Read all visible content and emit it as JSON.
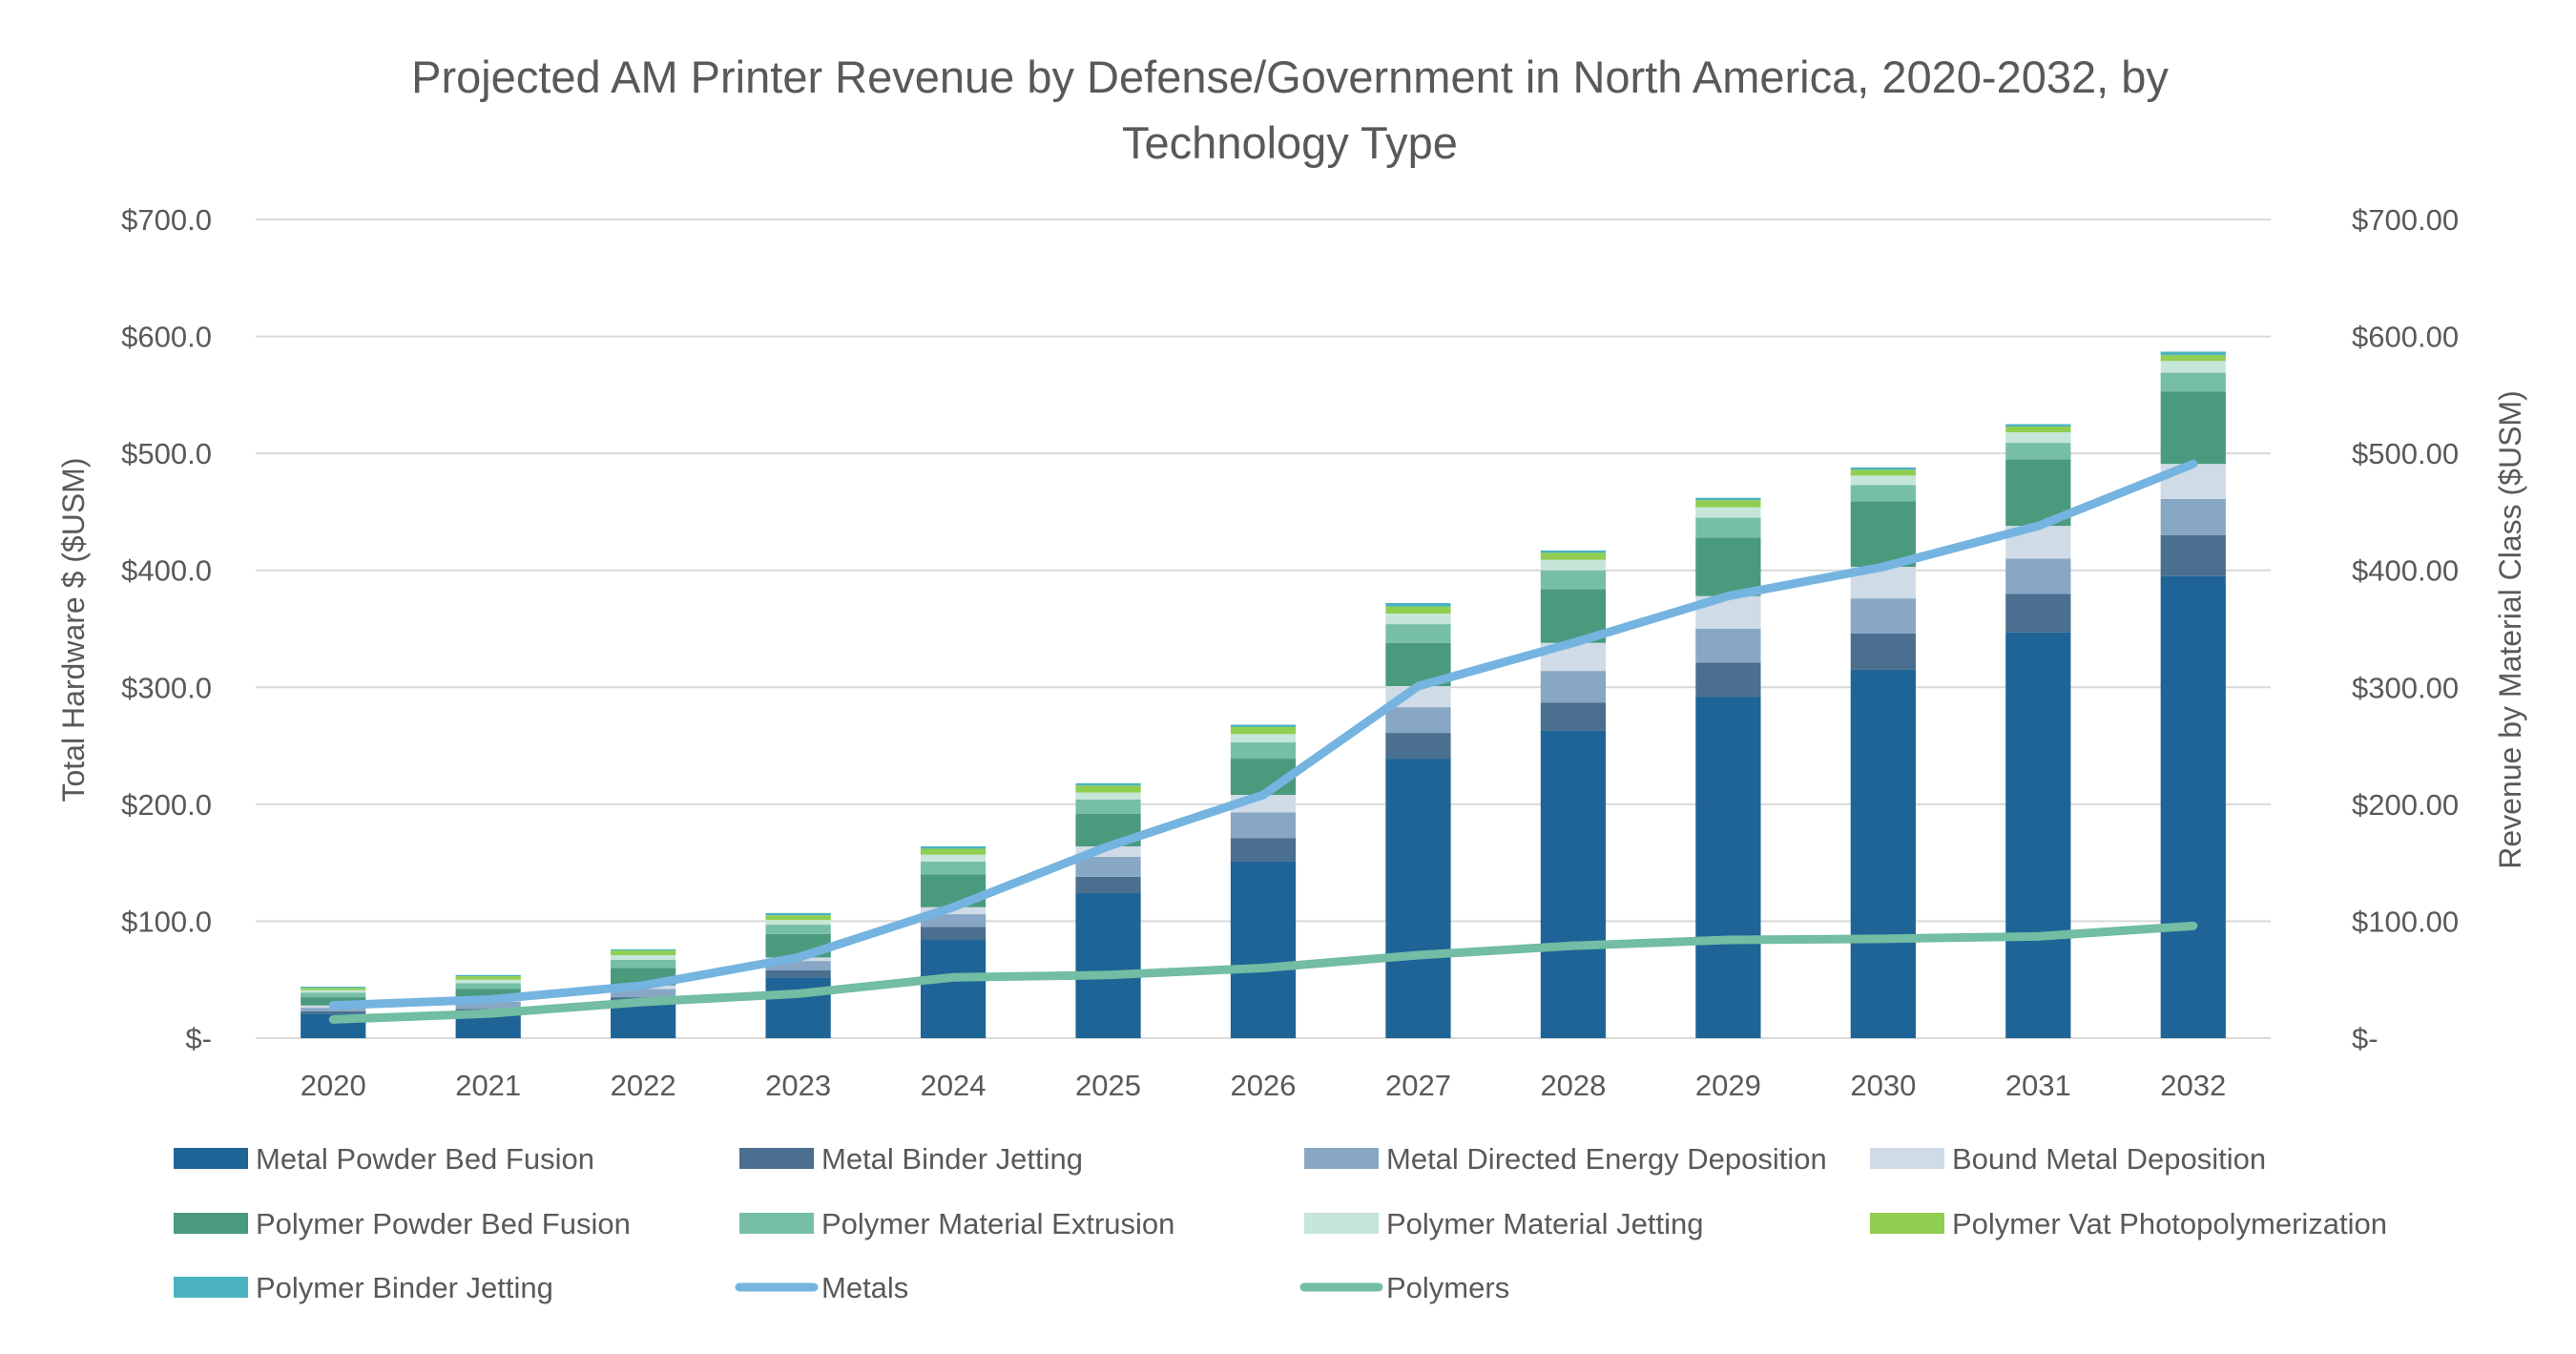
{
  "chart_data": {
    "type": "bar",
    "stacked": true,
    "title": "Projected AM Printer Revenue by Defense/Government in North America, 2020-2032, by Technology Type",
    "title_lines": [
      "Projected AM Printer Revenue by Defense/Government in North America, 2020-2032, by",
      "Technology Type"
    ],
    "ylabel": "Total Hardware $ ($USM)",
    "y2label": "Revenue by Material Class ($USM)",
    "ylim": [
      0,
      700
    ],
    "y2lim": [
      0,
      700
    ],
    "yticks": [
      "$-",
      "$100.0",
      "$200.0",
      "$300.0",
      "$400.0",
      "$500.0",
      "$600.0",
      "$700.0"
    ],
    "y2ticks": [
      "$-",
      "$100.00",
      "$200.00",
      "$300.00",
      "$400.00",
      "$500.00",
      "$600.00",
      "$700.00"
    ],
    "grid": true,
    "legend_position": "bottom",
    "categories": [
      "2020",
      "2021",
      "2022",
      "2023",
      "2024",
      "2025",
      "2026",
      "2027",
      "2028",
      "2029",
      "2030",
      "2031",
      "2032"
    ],
    "series": [
      {
        "name": "Metal Powder Bed Fusion",
        "color": "#1f6496",
        "values": [
          21,
          22,
          32,
          52,
          84,
          124,
          151,
          239,
          263,
          292,
          315,
          347,
          395
        ]
      },
      {
        "name": "Metal Binder Jetting",
        "color": "#4a6f8f",
        "values": [
          2,
          3,
          3,
          6,
          11,
          14,
          20,
          22,
          24,
          29,
          31,
          33,
          35
        ]
      },
      {
        "name": "Metal Directed Energy Deposition",
        "color": "#88a7c4",
        "values": [
          3,
          6,
          7,
          8,
          11,
          17,
          22,
          22,
          27,
          29,
          30,
          30,
          31
        ]
      },
      {
        "name": "Bound Metal Deposition",
        "color": "#cfdbe6",
        "values": [
          2,
          2,
          3,
          3,
          6,
          9,
          15,
          18,
          24,
          28,
          27,
          28,
          30
        ]
      },
      {
        "name": "Polymer Powder Bed Fusion",
        "color": "#4a9a7e",
        "values": [
          7,
          9,
          15,
          20,
          28,
          28,
          31,
          37,
          46,
          50,
          56,
          57,
          62
        ]
      },
      {
        "name": "Polymer Material Extrusion",
        "color": "#76bfa6",
        "values": [
          4,
          5,
          7,
          8,
          11,
          12,
          14,
          16,
          16,
          17,
          14,
          14,
          16
        ]
      },
      {
        "name": "Polymer Material Jetting",
        "color": "#c5e6d8",
        "values": [
          2,
          3,
          4,
          4,
          6,
          6,
          7,
          9,
          9,
          9,
          8,
          9,
          10
        ]
      },
      {
        "name": "Polymer Vat Photopolymerization",
        "color": "#8fce50",
        "values": [
          2,
          3,
          4,
          4,
          5,
          6,
          6,
          6,
          6,
          6,
          5,
          5,
          5
        ]
      },
      {
        "name": "Polymer Binder Jetting",
        "color": "#4bb3bf",
        "values": [
          1,
          1,
          1,
          2,
          2,
          2,
          2,
          3,
          2,
          2,
          2,
          2,
          3
        ]
      }
    ],
    "lines": [
      {
        "name": "Metals",
        "color": "#75b4e0",
        "axis": "right",
        "values": [
          28,
          33,
          45,
          69,
          112,
          164,
          208,
          301,
          338,
          378,
          403,
          438,
          491
        ]
      },
      {
        "name": "Polymers",
        "color": "#72bda3",
        "axis": "right",
        "values": [
          16,
          21,
          31,
          38,
          52,
          54,
          60,
          71,
          79,
          84,
          85,
          87,
          96
        ]
      }
    ]
  }
}
